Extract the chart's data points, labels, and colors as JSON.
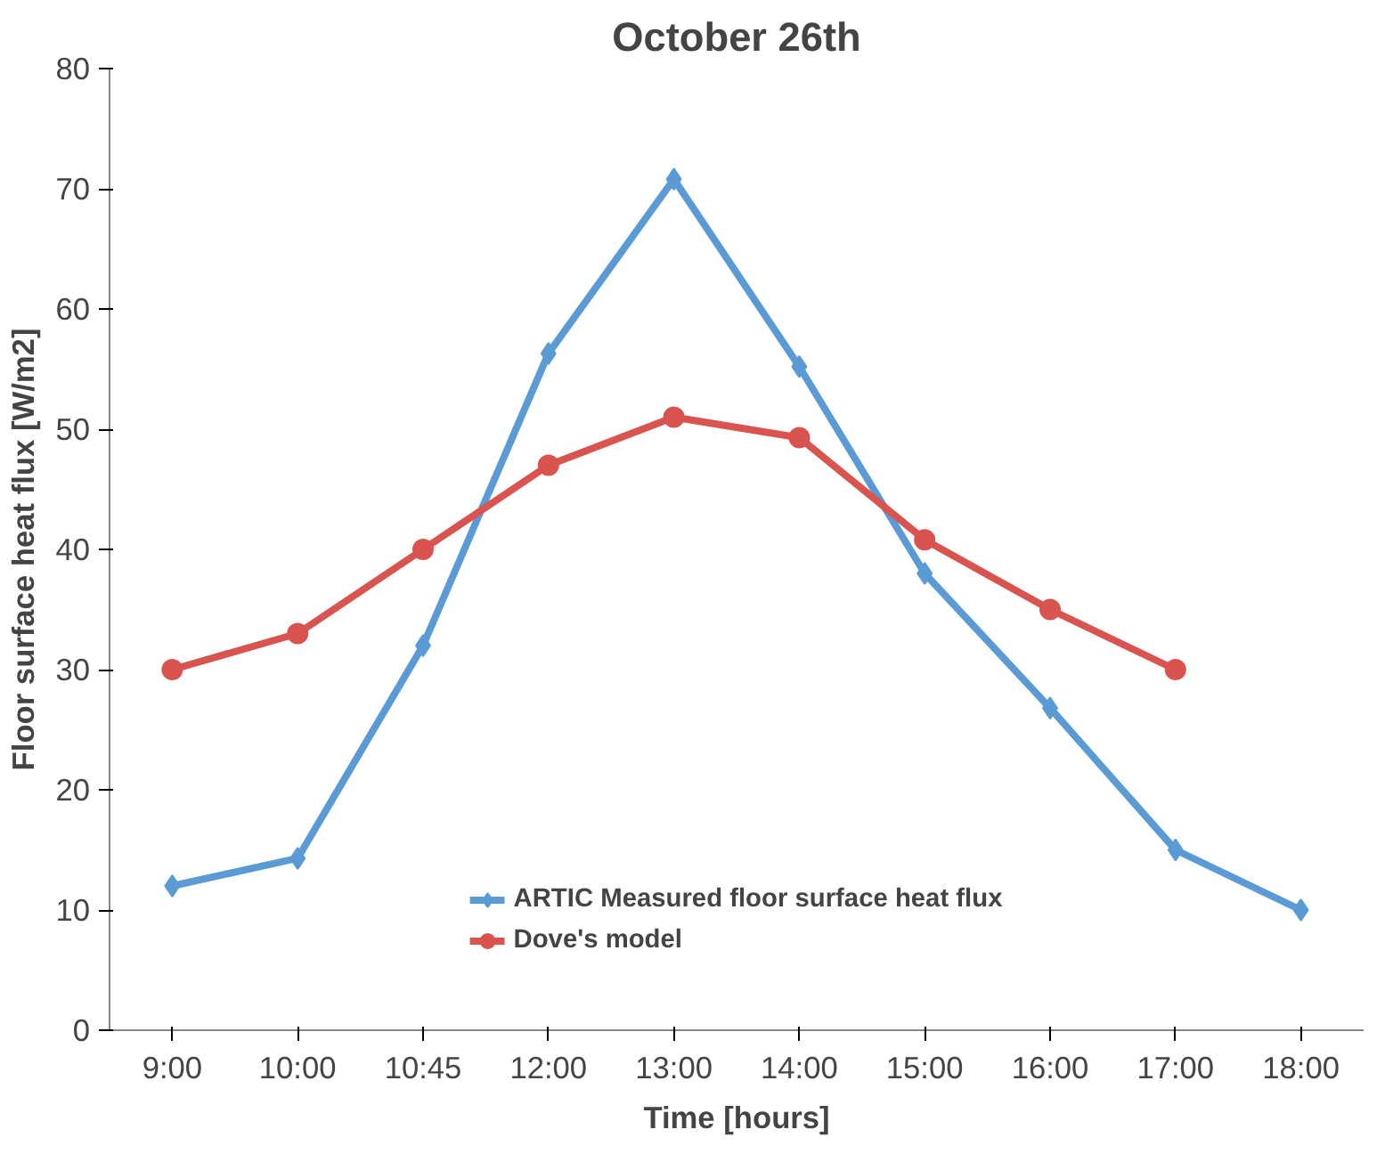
{
  "chart_data": {
    "type": "line",
    "title": "October 26th",
    "xlabel": "Time [hours]",
    "ylabel": "Floor surface heat flux [W/m2]",
    "categories": [
      "9:00",
      "10:00",
      "10:45",
      "12:00",
      "13:00",
      "14:00",
      "15:00",
      "16:00",
      "17:00",
      "18:00"
    ],
    "series": [
      {
        "name": "ARTIC Measured floor surface heat flux",
        "color": "#5b9bd5",
        "marker": "diamond",
        "values": [
          12,
          14.3,
          32,
          56.3,
          70.8,
          55.2,
          38,
          26.8,
          15,
          10
        ]
      },
      {
        "name": "Dove's model",
        "color": "#d9534f",
        "marker": "circle",
        "values": [
          30,
          33,
          40,
          47,
          51,
          49.3,
          40.8,
          35,
          30,
          null
        ]
      }
    ],
    "ylim": [
      0,
      80
    ],
    "yticks": [
      0,
      10,
      20,
      30,
      40,
      50,
      60,
      70,
      80
    ],
    "grid": false,
    "legend": "bottom",
    "line_style": "solid"
  }
}
